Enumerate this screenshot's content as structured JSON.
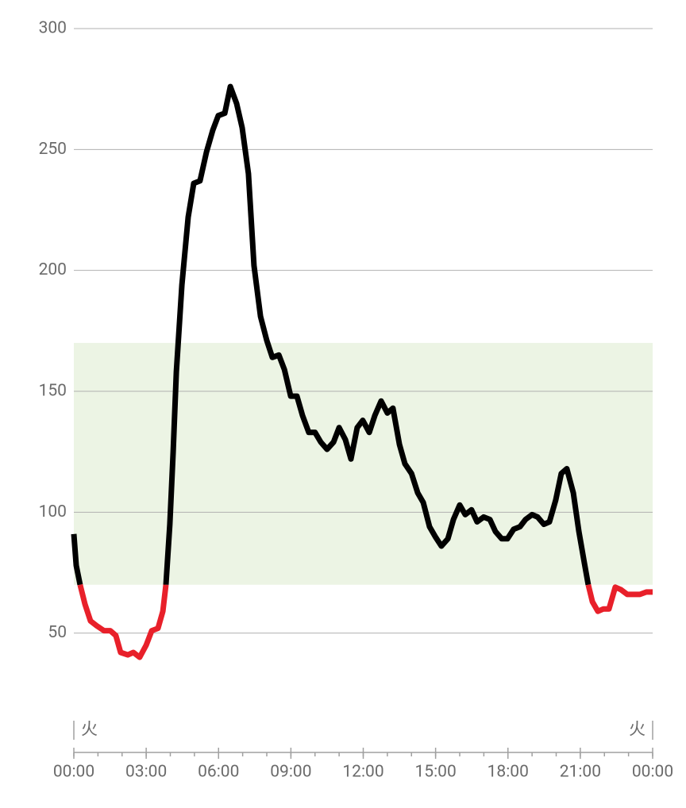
{
  "chart_data": {
    "type": "line",
    "x": [
      0,
      0.1,
      0.26,
      0.46,
      0.69,
      0.95,
      1.25,
      1.51,
      1.74,
      1.94,
      2.24,
      2.47,
      2.73,
      3.0,
      3.23,
      3.49,
      3.69,
      3.82,
      3.98,
      4.12,
      4.25,
      4.48,
      4.74,
      4.97,
      5.23,
      5.5,
      5.76,
      5.99,
      6.26,
      6.49,
      6.75,
      6.98,
      7.24,
      7.47,
      7.74,
      8.0,
      8.23,
      8.5,
      8.73,
      8.99,
      9.25,
      9.48,
      9.74,
      10.0,
      10.24,
      10.5,
      10.77,
      11.0,
      11.26,
      11.49,
      11.75,
      11.98,
      12.25,
      12.48,
      12.74,
      13.0,
      13.23,
      13.5,
      13.73,
      14.0,
      14.26,
      14.49,
      14.75,
      14.98,
      15.24,
      15.51,
      15.74,
      16.0,
      16.23,
      16.49,
      16.72,
      16.99,
      17.25,
      17.48,
      17.74,
      17.98,
      18.24,
      18.5,
      18.73,
      19.0,
      19.23,
      19.49,
      19.72,
      19.98,
      20.21,
      20.44,
      20.71,
      20.94,
      21.17,
      21.33,
      21.5,
      21.73,
      21.96,
      22.19,
      22.45,
      22.68,
      22.95,
      23.21,
      23.47,
      23.74,
      24
    ],
    "values": [
      91,
      78,
      70,
      62,
      55,
      53,
      51,
      51,
      49,
      42,
      41,
      42,
      40,
      45,
      51,
      52,
      59,
      70,
      95,
      125,
      158,
      194,
      222,
      236,
      237,
      249,
      258,
      264,
      265,
      276,
      269,
      259,
      240,
      202,
      181,
      171,
      164,
      165,
      159,
      148,
      148,
      140,
      133,
      133,
      129,
      126,
      129,
      135,
      130,
      122,
      135,
      138,
      133,
      140,
      146,
      141,
      143,
      128,
      120,
      116,
      108,
      104,
      94,
      90,
      86,
      89,
      97,
      103,
      99,
      101,
      96,
      98,
      97,
      92,
      89,
      89,
      93,
      94,
      97,
      99,
      98,
      95,
      96,
      105,
      116,
      118,
      108,
      92,
      79,
      70,
      63,
      59,
      60,
      60,
      69,
      68,
      66,
      66,
      66,
      67,
      67
    ],
    "color": "#000000",
    "low_color": "#e8202a",
    "low_threshold": 70,
    "target_range": [
      70,
      170
    ],
    "target_color": "#ecf4e4",
    "xlim": [
      0,
      24
    ],
    "xticks": [
      {
        "value": 0,
        "label": "00:00"
      },
      {
        "value": 3,
        "label": "03:00"
      },
      {
        "value": 6,
        "label": "06:00"
      },
      {
        "value": 9,
        "label": "09:00"
      },
      {
        "value": 12,
        "label": "12:00"
      },
      {
        "value": 15,
        "label": "15:00"
      },
      {
        "value": 18,
        "label": "18:00"
      },
      {
        "value": 21,
        "label": "21:00"
      },
      {
        "value": 24,
        "label": "00:00"
      }
    ],
    "ylim": [
      0,
      300
    ],
    "yticks": [
      50,
      100,
      150,
      200,
      250,
      300
    ],
    "grid": true,
    "day_labels": [
      {
        "x": 0,
        "label": "火"
      },
      {
        "x": 24,
        "label": "火"
      }
    ]
  }
}
